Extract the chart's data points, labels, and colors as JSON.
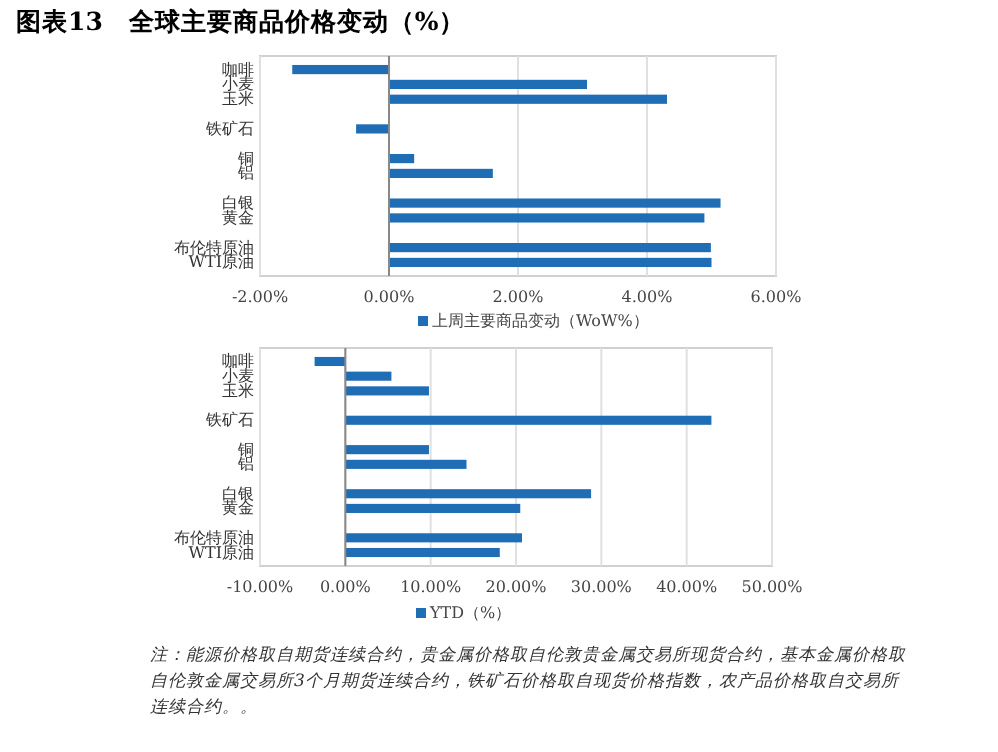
{
  "chart_data": [
    {
      "type": "bar",
      "orientation": "horizontal",
      "title": "图表13　全球主要商品价格变动（%）",
      "categories": [
        "咖啡",
        "小麦",
        "玉米",
        null,
        "铁矿石",
        null,
        "铜",
        "铝",
        null,
        "白银",
        "黄金",
        null,
        "布伦特原油",
        "WTI原油"
      ],
      "series": [
        {
          "name": "上周主要商品变动（WoW%）",
          "color": "#1f6db5",
          "values": [
            -1.5,
            3.07,
            4.31,
            null,
            -0.51,
            null,
            0.39,
            1.61,
            null,
            5.14,
            4.89,
            null,
            4.99,
            5.0
          ]
        }
      ],
      "xlim": [
        -2,
        6
      ],
      "xticks": [
        {
          "value": -2,
          "label": "-2.00%"
        },
        {
          "value": 0,
          "label": "0.00%"
        },
        {
          "value": 2,
          "label": "2.00%"
        },
        {
          "value": 4,
          "label": "4.00%"
        },
        {
          "value": 6,
          "label": "6.00%"
        }
      ],
      "grid": "x",
      "legend": "bottom"
    },
    {
      "type": "bar",
      "orientation": "horizontal",
      "categories": [
        "咖啡",
        "小麦",
        "玉米",
        null,
        "铁矿石",
        null,
        "铜",
        "铝",
        null,
        "白银",
        "黄金",
        null,
        "布伦特原油",
        "WTI原油"
      ],
      "series": [
        {
          "name": "YTD（%）",
          "color": "#1f6db5",
          "values": [
            -3.6,
            5.4,
            9.8,
            null,
            42.9,
            null,
            9.8,
            14.2,
            null,
            28.8,
            20.5,
            null,
            20.7,
            18.1
          ]
        }
      ],
      "xlim": [
        -10,
        50
      ],
      "xticks": [
        {
          "value": -10,
          "label": "-10.00%"
        },
        {
          "value": 0,
          "label": "0.00%"
        },
        {
          "value": 10,
          "label": "10.00%"
        },
        {
          "value": 20,
          "label": "20.00%"
        },
        {
          "value": 30,
          "label": "30.00%"
        },
        {
          "value": 40,
          "label": "40.00%"
        },
        {
          "value": 50,
          "label": "50.00%"
        }
      ],
      "grid": "x",
      "legend": "bottom",
      "annotations": [
        "注：能源价格取自期货连续合约，贵金属价格取自伦敦贵金属交易所现货合约，基本金属价格取自伦敦金属交易所3个月期货连续合约，铁矿石价格取自现货价格指数，农产品价格取自交易所连续合约。。"
      ]
    }
  ]
}
